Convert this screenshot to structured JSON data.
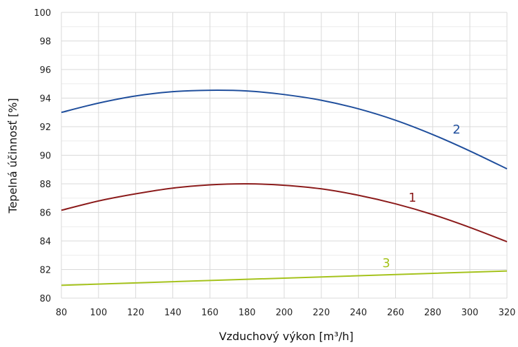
{
  "chart_data": {
    "type": "line",
    "xlabel": "Vzduchový výkon [m³/h]",
    "ylabel": "Tepelná účinnosť [%]",
    "xlim": [
      80,
      320
    ],
    "ylim": [
      80,
      100
    ],
    "x_ticks": [
      "80",
      "100",
      "120",
      "140",
      "160",
      "180",
      "200",
      "220",
      "240",
      "260",
      "280",
      "300",
      "320"
    ],
    "y_ticks": [
      "80",
      "82",
      "84",
      "86",
      "88",
      "90",
      "92",
      "94",
      "96",
      "98",
      "100"
    ],
    "grid": true,
    "legend": "none",
    "series": [
      {
        "label": "1",
        "color": "#8b1a1a",
        "x": [
          80,
          100,
          120,
          140,
          160,
          180,
          200,
          220,
          240,
          260,
          280,
          300,
          320
        ],
        "y": [
          86.15,
          86.8,
          87.3,
          87.7,
          87.93,
          88.0,
          87.9,
          87.65,
          87.2,
          86.6,
          85.85,
          84.95,
          83.95
        ]
      },
      {
        "label": "2",
        "color": "#1f4e9c",
        "x": [
          80,
          100,
          120,
          140,
          160,
          180,
          200,
          220,
          240,
          260,
          280,
          300,
          320
        ],
        "y": [
          93.0,
          93.65,
          94.15,
          94.45,
          94.55,
          94.5,
          94.25,
          93.85,
          93.25,
          92.45,
          91.45,
          90.3,
          89.05
        ]
      },
      {
        "label": "3",
        "color": "#a4c21a",
        "x": [
          80,
          320
        ],
        "y": [
          80.9,
          81.9
        ]
      }
    ]
  }
}
